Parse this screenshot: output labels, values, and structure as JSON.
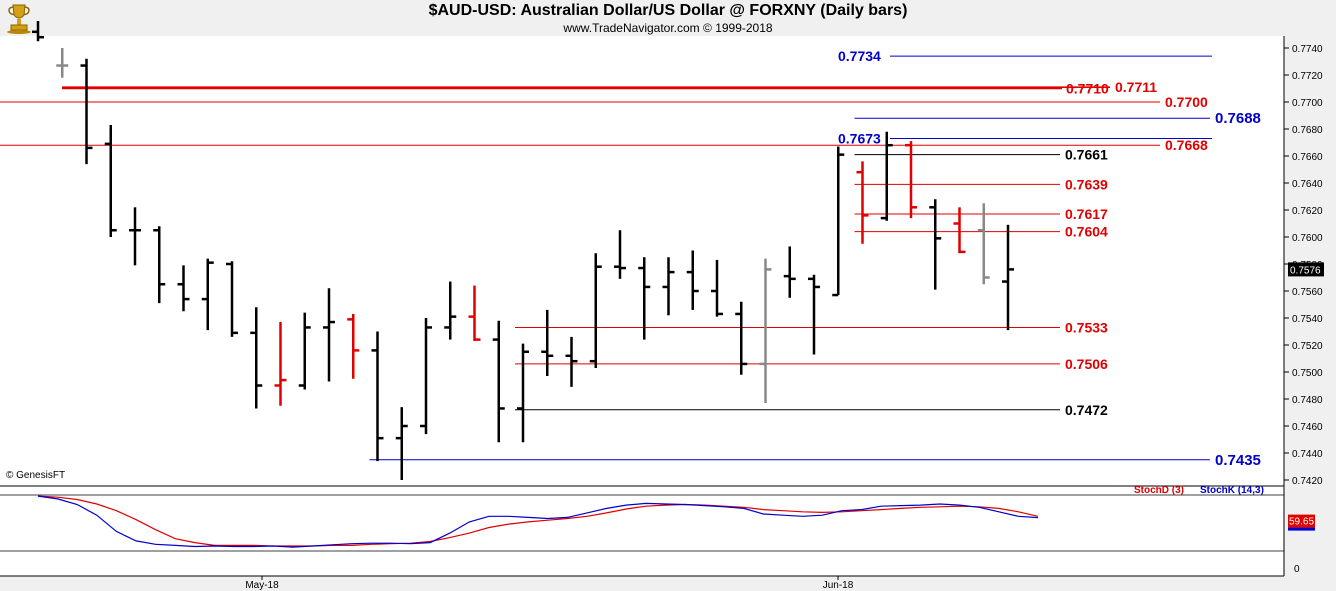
{
  "header": {
    "title": "$AUD-USD:  Australian Dollar/US Dollar @ FORXNY  (Daily bars)",
    "subtitle": "www.TradeNavigator.com © 1999-2018"
  },
  "copyright": "© GenesisFT",
  "colors": {
    "up": "#000000",
    "down": "#e00000",
    "neutral": "#888888",
    "blue": "#0000cc",
    "red": "#e00000",
    "black": "#000000"
  },
  "chart_data": [
    {
      "type": "ohlc",
      "ylim": [
        0.741,
        0.775
      ],
      "y_ticks": [
        "0.7740",
        "0.7720",
        "0.7700",
        "0.7680",
        "0.7660",
        "0.7640",
        "0.7620",
        "0.7600",
        "0.7580",
        "0.7560",
        "0.7540",
        "0.7520",
        "0.7500",
        "0.7480",
        "0.7460",
        "0.7440",
        "0.7420"
      ],
      "last_price": "0.7576",
      "x_labels": [
        "May-18",
        "Jun-18"
      ],
      "bars": [
        {
          "o": 0.7752,
          "h": 0.776,
          "l": 0.7745,
          "c": 0.7748,
          "t": "up"
        },
        {
          "o": 0.7727,
          "h": 0.774,
          "l": 0.7718,
          "c": 0.7727,
          "t": "neutral"
        },
        {
          "o": 0.7727,
          "h": 0.7732,
          "l": 0.7654,
          "c": 0.7666,
          "t": "up"
        },
        {
          "o": 0.7669,
          "h": 0.7683,
          "l": 0.76,
          "c": 0.7605,
          "t": "up"
        },
        {
          "o": 0.7605,
          "h": 0.7622,
          "l": 0.7579,
          "c": 0.7605,
          "t": "up"
        },
        {
          "o": 0.7605,
          "h": 0.7608,
          "l": 0.7551,
          "c": 0.7565,
          "t": "up"
        },
        {
          "o": 0.7565,
          "h": 0.7579,
          "l": 0.7545,
          "c": 0.7554,
          "t": "up"
        },
        {
          "o": 0.7554,
          "h": 0.7584,
          "l": 0.7531,
          "c": 0.7581,
          "t": "up"
        },
        {
          "o": 0.758,
          "h": 0.7582,
          "l": 0.7526,
          "c": 0.7529,
          "t": "up"
        },
        {
          "o": 0.7529,
          "h": 0.7548,
          "l": 0.7473,
          "c": 0.749,
          "t": "up"
        },
        {
          "o": 0.749,
          "h": 0.7537,
          "l": 0.7475,
          "c": 0.7494,
          "t": "down"
        },
        {
          "o": 0.749,
          "h": 0.7544,
          "l": 0.7487,
          "c": 0.7533,
          "t": "up"
        },
        {
          "o": 0.7533,
          "h": 0.7562,
          "l": 0.7493,
          "c": 0.7537,
          "t": "up"
        },
        {
          "o": 0.7539,
          "h": 0.7543,
          "l": 0.7495,
          "c": 0.7516,
          "t": "down"
        },
        {
          "o": 0.7516,
          "h": 0.753,
          "l": 0.7434,
          "c": 0.7451,
          "t": "up"
        },
        {
          "o": 0.7451,
          "h": 0.7474,
          "l": 0.742,
          "c": 0.746,
          "t": "up"
        },
        {
          "o": 0.746,
          "h": 0.754,
          "l": 0.7454,
          "c": 0.7533,
          "t": "up"
        },
        {
          "o": 0.7533,
          "h": 0.7567,
          "l": 0.7524,
          "c": 0.7541,
          "t": "up"
        },
        {
          "o": 0.7541,
          "h": 0.7564,
          "l": 0.7523,
          "c": 0.7524,
          "t": "down"
        },
        {
          "o": 0.7524,
          "h": 0.7538,
          "l": 0.7448,
          "c": 0.7473,
          "t": "up"
        },
        {
          "o": 0.7473,
          "h": 0.7521,
          "l": 0.7448,
          "c": 0.7515,
          "t": "up"
        },
        {
          "o": 0.7515,
          "h": 0.7546,
          "l": 0.7497,
          "c": 0.7512,
          "t": "up"
        },
        {
          "o": 0.7512,
          "h": 0.7526,
          "l": 0.7489,
          "c": 0.7508,
          "t": "up"
        },
        {
          "o": 0.7508,
          "h": 0.7588,
          "l": 0.7503,
          "c": 0.7578,
          "t": "up"
        },
        {
          "o": 0.7578,
          "h": 0.7605,
          "l": 0.7569,
          "c": 0.7577,
          "t": "up"
        },
        {
          "o": 0.7577,
          "h": 0.7585,
          "l": 0.7524,
          "c": 0.7563,
          "t": "up"
        },
        {
          "o": 0.7563,
          "h": 0.7585,
          "l": 0.7542,
          "c": 0.7574,
          "t": "up"
        },
        {
          "o": 0.7574,
          "h": 0.759,
          "l": 0.7546,
          "c": 0.756,
          "t": "up"
        },
        {
          "o": 0.756,
          "h": 0.7583,
          "l": 0.7541,
          "c": 0.7543,
          "t": "up"
        },
        {
          "o": 0.7543,
          "h": 0.7552,
          "l": 0.7498,
          "c": 0.7506,
          "t": "up"
        },
        {
          "o": 0.7506,
          "h": 0.7584,
          "l": 0.7477,
          "c": 0.7576,
          "t": "neutral"
        },
        {
          "o": 0.7571,
          "h": 0.7593,
          "l": 0.7555,
          "c": 0.7569,
          "t": "up"
        },
        {
          "o": 0.7569,
          "h": 0.7572,
          "l": 0.7513,
          "c": 0.7563,
          "t": "up"
        },
        {
          "o": 0.7557,
          "h": 0.7667,
          "l": 0.7557,
          "c": 0.7661,
          "t": "up"
        },
        {
          "o": 0.7648,
          "h": 0.7656,
          "l": 0.7595,
          "c": 0.7616,
          "t": "down"
        },
        {
          "o": 0.7614,
          "h": 0.7678,
          "l": 0.7612,
          "c": 0.7668,
          "t": "up"
        },
        {
          "o": 0.7668,
          "h": 0.7671,
          "l": 0.7614,
          "c": 0.7622,
          "t": "down"
        },
        {
          "o": 0.7622,
          "h": 0.7628,
          "l": 0.7561,
          "c": 0.7599,
          "t": "up"
        },
        {
          "o": 0.761,
          "h": 0.7622,
          "l": 0.7588,
          "c": 0.7589,
          "t": "down"
        },
        {
          "o": 0.7605,
          "h": 0.7625,
          "l": 0.7565,
          "c": 0.757,
          "t": "neutral"
        },
        {
          "o": 0.7567,
          "h": 0.7609,
          "l": 0.7531,
          "c": 0.7576,
          "t": "up"
        }
      ],
      "levels": [
        {
          "value": 0.7734,
          "label": "0.7734",
          "color": "blue",
          "xs": 30,
          "xe": 40,
          "label_side": "left"
        },
        {
          "value": 0.7711,
          "label": "0.7711",
          "color": "red",
          "xs": 1,
          "xe": 26,
          "label_side": "right"
        },
        {
          "value": 0.771,
          "label": "0.7710",
          "color": "red",
          "xs": 1,
          "xe": 26,
          "label_side": "right"
        },
        {
          "value": 0.77,
          "label": "0.7700",
          "color": "red",
          "xs": 0,
          "xe": 29,
          "label_side": "right"
        },
        {
          "value": 0.7688,
          "label": "0.7688",
          "color": "blue",
          "xs": 34,
          "xe": 40,
          "label_side": "right"
        },
        {
          "value": 0.7673,
          "label": "0.7673",
          "color": "blue",
          "xs": 34,
          "xe": 40,
          "label_side": "left"
        },
        {
          "value": 0.7668,
          "label": "0.7668",
          "color": "red",
          "xs": 0,
          "xe": 40,
          "label_side": "right"
        },
        {
          "value": 0.7661,
          "label": "0.7661",
          "color": "black",
          "xs": 34,
          "xe": 40,
          "label_side": "right"
        },
        {
          "value": 0.7639,
          "label": "0.7639",
          "color": "red",
          "xs": 34,
          "xe": 40,
          "label_side": "right"
        },
        {
          "value": 0.7617,
          "label": "0.7617",
          "color": "red",
          "xs": 34,
          "xe": 40,
          "label_side": "right"
        },
        {
          "value": 0.7604,
          "label": "0.7604",
          "color": "red",
          "xs": 34,
          "xe": 40,
          "label_side": "right"
        },
        {
          "value": 0.7533,
          "label": "0.7533",
          "color": "red",
          "xs": 20,
          "xe": 40,
          "label_side": "right"
        },
        {
          "value": 0.7506,
          "label": "0.7506",
          "color": "red",
          "xs": 20,
          "xe": 40,
          "label_side": "right"
        },
        {
          "value": 0.7472,
          "label": "0.7472",
          "color": "black",
          "xs": 20,
          "xe": 40,
          "label_side": "right"
        },
        {
          "value": 0.7435,
          "label": "0.7435",
          "color": "blue",
          "xs": 14,
          "xe": 40,
          "label_side": "right"
        }
      ]
    },
    {
      "type": "line",
      "title": "",
      "legend": [
        "StochD (3)",
        "StochK (14,3)"
      ],
      "ylim": [
        0,
        100
      ],
      "y_ticks": [
        "0"
      ],
      "last_value": "59.65",
      "series": [
        {
          "name": "StochD (3)",
          "color": "red",
          "values": [
            98,
            96,
            92,
            84,
            72,
            56,
            38,
            22,
            15,
            10,
            10,
            10,
            9,
            9,
            9,
            10,
            10,
            12,
            13,
            14,
            17,
            24,
            32,
            42,
            48,
            52,
            55,
            58,
            62,
            68,
            75,
            80,
            82,
            83,
            82,
            80,
            78,
            74,
            72,
            70,
            69,
            70,
            72,
            74,
            76,
            78,
            79,
            80,
            79,
            76,
            70,
            62
          ]
        },
        {
          "name": "StochK (14,3)",
          "color": "blue",
          "values": [
            98,
            93,
            83,
            64,
            35,
            18,
            12,
            10,
            8,
            9,
            8,
            8,
            9,
            7,
            9,
            11,
            13,
            14,
            14,
            13,
            15,
            32,
            52,
            62,
            62,
            60,
            58,
            60,
            68,
            76,
            82,
            85,
            84,
            83,
            81,
            79,
            76,
            66,
            64,
            62,
            64,
            72,
            74,
            80,
            81,
            82,
            84,
            82,
            78,
            70,
            62,
            59.65
          ]
        }
      ]
    }
  ]
}
